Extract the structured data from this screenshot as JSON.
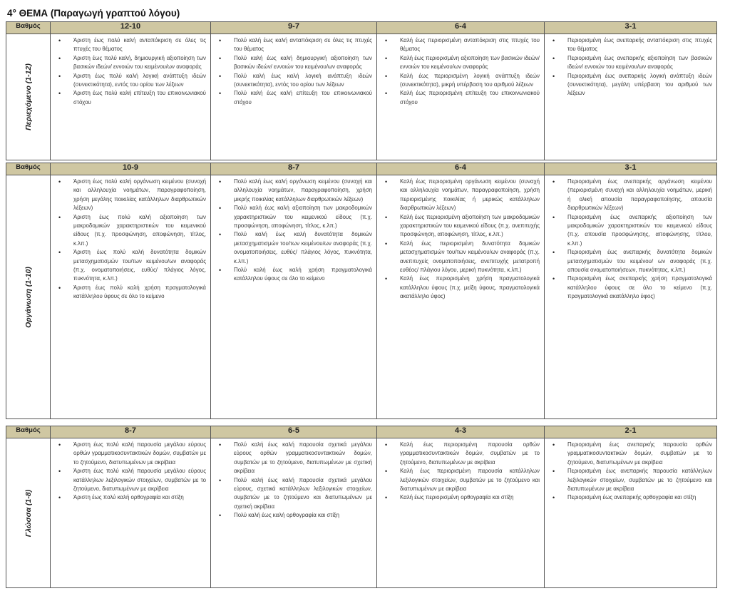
{
  "title": "4° ΘΕΜΑ (Παραγωγή γραπτού λόγου)",
  "colors": {
    "header_bg": "#cfc7a2",
    "border": "#555555"
  },
  "sections": [
    {
      "grade_label": "Βαθμός",
      "criterion": "Περιεχόμενο (1-12)",
      "bands": [
        {
          "range": "12-10",
          "items": [
            "Άριστη έως πολύ καλή ανταπόκριση σε όλες τις πτυχές του θέματος",
            "Άριστη έως πολύ καλή, δημιουργική αξιοποίηση των βασικών ιδεών/ εννοιών του κειμένου/ων αναφοράς",
            "Άριστη έως πολύ καλή λογική ανάπτυξη ιδεών (συνεκτικότητα), εντός του ορίου των λέξεων",
            "Άριστη έως πολύ καλή επίτευξη του επικοινωνιακού στόχου"
          ]
        },
        {
          "range": "9-7",
          "items": [
            "Πολύ καλή έως καλή ανταπόκριση σε όλες τις πτυχές του θέματος",
            "Πολύ καλή έως καλή δημιουργική αξιοποίηση των βασικών ιδεών/ εννοιών του κειμένου/ων αναφοράς",
            "Πολύ καλή έως καλή λογική ανάπτυξη ιδεών (συνεκτικότητα), εντός του ορίου των λέξεων",
            "Πολύ καλή έως καλή επίτευξη του επικοινωνιακού στόχου"
          ]
        },
        {
          "range": "6-4",
          "items": [
            "Καλή έως περιορισμένη ανταπόκριση στις πτυχές του θέματος",
            "Καλή έως περιορισμένη αξιοποίηση των βασικών ιδεών/ εννοιών του κειμένου/ων αναφοράς",
            "Καλή έως περιορισμένη λογική ανάπτυξη ιδεών (συνεκτικότητα), μικρή υπέρβαση του αριθμού λέξεων",
            "Καλή έως περιορισμένη επίτευξη του επικοινωνιακού στόχου"
          ]
        },
        {
          "range": "3-1",
          "items": [
            "Περιορισμένη έως ανεπαρκής ανταπόκριση στις πτυχές του θέματος",
            "Περιορισμένη έως ανεπαρκής αξιοποίηση των βασικών ιδεών/ εννοιών του κειμένου/ων αναφοράς",
            "Περιορισμένη έως ανεπαρκής λογική ανάπτυξη ιδεών (συνεκτικότητα), μεγάλη υπέρβαση του αριθμού των λέξεων"
          ]
        }
      ]
    },
    {
      "grade_label": "Βαθμός",
      "criterion": "Οργάνωση (1-10)",
      "bands": [
        {
          "range": "10-9",
          "items": [
            "Άριστη έως πολύ καλή οργάνωση κειμένου (συνοχή και αλληλουχία νοημάτων, παραγραφοποίηση, χρήση μεγάλης ποικιλίας κατάλληλων διαρθρωτικών λέξεων)",
            "Άριστη έως πολύ καλή αξιοποίηση των μακροδομικών χαρακτηριστικών του κειμενικού είδους (π.χ. προσφώνηση, αποφώνηση, τίτλος, κ.λπ.)",
            "Άριστη έως πολύ καλή δυνατότητα δομικών μετασχηματισμών του/των κειμένου/ων αναφοράς (π.χ. ονοματοποιήσεις, ευθύς/ πλάγιος λόγος, πυκνότητα, κ.λπ.)",
            "Άριστη έως πολύ καλή χρήση πραγματολογικά κατάλληλου ύφους σε όλο το κείμενο"
          ]
        },
        {
          "range": "8-7",
          "items": [
            "Πολύ καλή έως καλή οργάνωση κειμένου (συναχή και αλληλουχία νοημάτων, παραγραφοποίηση, χρήση μικρής ποικιλίας κατάλληλων διαρθρωτικών λέξεων)",
            "Πολύ καλή έως καλή αξιοποίηση των μακροδομικών χαρακτηριστικών του κειμενικού είδους (π.χ. προσφώνηση, αποφώνηση, τίτλος, κ.λπ.)",
            "Πολύ καλή έως καλή δυνατότητα δομικών μετασχηματισμών του/των κειμένου/ων αναφοράς (π.χ. ονοματοποιήσεις, ευθύς/ πλάγιος λόγος, πυκνότητα, κ.λπ.)",
            "Πολύ καλή έως καλή χρήση πραγματολογικά κατάλληλου ύφους σε όλο το κείμενο"
          ]
        },
        {
          "range": "6-4",
          "items": [
            "Καλή έως περιορισμένη οργάνωση κειμένου (συναχή και αλληλουχία νοημάτων, παραγραφοποίηση, χρήση περιορισμένης ποικιλίας ή μερικώς κατάλληλων διαρθρωτικών λέξεων)",
            "Καλή έως περιορισμένη αξιοποίηση των μακροδομικών χαρακτηριστικών του κειμενικού είδους (π.χ. ανεπιτυχής προσφώνηση, αποφώνηση, τίτλος, κ.λπ.)",
            "Καλή έως περιορισμένη δυνατότητα δομικών μετασχηματισμών του/των κειμένου/ων αναφοράς (π.χ. ανεπιτυχείς ονοματοποιήσεις, ανεπιτυχής μετατροπή ευθέος/ πλάγιου λόγου, μερική πυκνότητα, κ.λπ.)",
            "Καλή έως περιορισμένη χρήση πραγματολογικά κατάλληλου ύφους (π.χ. μείξη ύφους, πραγματολογικά ακατάλληλο ύφος)"
          ]
        },
        {
          "range": "3-1",
          "items": [
            "Περιορισμένη έως ανεπαρκής οργάνωση κειμένου (περιορισμένη συναχή και αλληλουχία νοημάτων, μερική ή ολική απουσία παραγραφοποίησης, απουσία διαρθρωτικών λέξεων)",
            "Περιορισμένη έως ανεπαρκής αξιοποίηση των μακροδομικών χαρακτηριστικών του κειμενικού είδους (π.χ. απουσία προσφώνησης, αποφώνησης, τίτλου, κ.λπ.)",
            "Περιορισμένη έως ανεπαρκής δυνατότητα δομικών μετασχηματισμών του κειμένου/ ων αναφοράς (π.χ. απουσία ονοματοποιήσεων, πυκνότητας, κ.λπ.)",
            "Περιορισμένη έως ανεπαρκής χρήση πραγματολογικά κατάλληλου ύφους σε όλο το κείμενο (π.χ. πραγματολογικά ακατάλληλο ύφος)"
          ]
        }
      ]
    },
    {
      "grade_label": "Βαθμός",
      "criterion": "Γλώσσα (1-8)",
      "bands": [
        {
          "range": "8-7",
          "items": [
            "Άριστη έως πολύ καλή παρουσία μεγάλου εύρους ορθών γραμματικοσυντακτικών δομών, συμβατών με το ζητούμενο, διατυπωμένων με ακρίβεια",
            "Άριστη έως πολύ καλή παρουσία μεγάλου εύρους κατάλληλων λεξιλογικών στοιχείων, συμβατών με το ζητούμενο, διατυπωμένων με ακρίβεια",
            "Άριστη έως πολύ καλή ορθογραφία και στίξη"
          ]
        },
        {
          "range": "6-5",
          "items": [
            "Πολύ καλή έως καλή παρουσία σχετικά μεγάλου εύρους ορθών γραμματικοσυντακτικών δομών, συμβατών με το ζητούμενο, διατυπωμένων με σχετική ακρίβεια",
            "Πολύ καλή έως καλή παρουσία σχετικά μεγάλου εύρους, σχετικά κατάλληλων λεξιλογικών στοιχείων, συμβατών με το ζητούμενο και διατυπωμένων με σχετική ακρίβεια",
            "Πολύ καλή έως καλή ορθογραφία και στίξη"
          ]
        },
        {
          "range": "4-3",
          "items": [
            "Καλή έως περιορισμένη παρουσία ορθών γραμματικοσυντακτικών δομών, συμβατών με το ζητούμενο, διατυπωμένων με ακρίβεια",
            "Καλή έως περιορισμένη παρουσία κατάλληλων λεξιλογικών στοιχείων, συμβατών με το ζητούμενο και διατυπωμένων με ακρίβεια",
            "Καλή έως περιορισμένη ορθογραφία και στίξη"
          ]
        },
        {
          "range": "2-1",
          "items": [
            "Περιορισμένη έως ανεπαρκής παρουσία ορθών γραμματικοσυντακτικών δομών, συμβατών με το ζητούμενο, διατυπωμένων με ακρίβεια",
            "Περιορισμένη έως ανεπαρκής παρουσία κατάλληλων λεξιλογικών στοιχείων, συμβατών με το ζητούμενο και διατυπωμένων με ακρίβεια",
            "Περιορισμένη έως ανεπαρκής ορθογραφία και στίξη"
          ]
        }
      ]
    }
  ]
}
